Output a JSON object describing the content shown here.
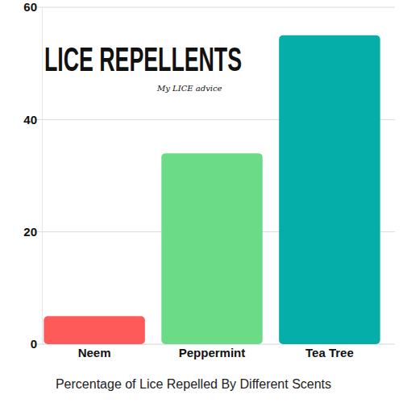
{
  "chart_data": {
    "type": "bar",
    "title": "LICE REPELLENTS",
    "subtitle": "My LICE advice",
    "x_label": "Percentage of Lice Repelled By Different Scents",
    "categories": [
      "Neem",
      "Peppermint",
      "Tea Tree"
    ],
    "values": [
      5,
      34,
      55
    ],
    "colors": [
      "#ff5a5a",
      "#6cdb87",
      "#06aeaa"
    ],
    "ylim": [
      0,
      60
    ],
    "yticks": [
      0,
      20,
      40,
      60
    ],
    "grid": true
  }
}
